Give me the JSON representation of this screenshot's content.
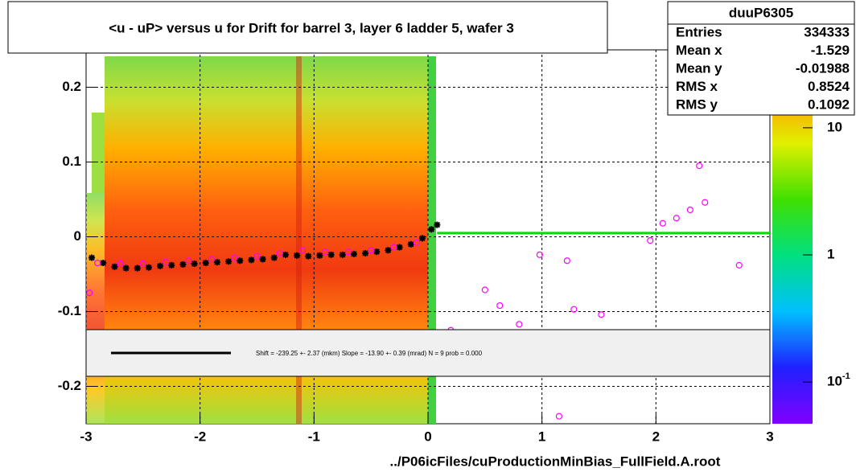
{
  "chart_data": {
    "type": "scatter",
    "title": "<u - uP>       versus   u for Drift for barrel 3, layer 6 ladder 5, wafer 3",
    "x_label": "../P06icFiles/cuProductionMinBias_FullField.A.root",
    "xlim": [
      -3,
      3
    ],
    "xticks": [
      -3,
      -2,
      -1,
      0,
      1,
      2,
      3
    ],
    "ylim": [
      -0.25,
      0.25
    ],
    "yticks": [
      -0.2,
      -0.1,
      0,
      0.1,
      0.2
    ],
    "grid": true,
    "series": [
      {
        "color": "#000000",
        "marker": "star",
        "x": [
          -2.95,
          -2.85,
          -2.75,
          -2.65,
          -2.55,
          -2.45,
          -2.35,
          -2.25,
          -2.15,
          -2.05,
          -1.95,
          -1.85,
          -1.75,
          -1.65,
          -1.55,
          -1.45,
          -1.35,
          -1.25,
          -1.15,
          -1.05,
          -0.95,
          -0.85,
          -0.75,
          -0.65,
          -0.55,
          -0.45,
          -0.35,
          -0.25,
          -0.15,
          -0.05,
          0.03,
          0.08
        ],
        "values": [
          -0.028,
          -0.035,
          -0.04,
          -0.042,
          -0.042,
          -0.041,
          -0.039,
          -0.038,
          -0.037,
          -0.036,
          -0.035,
          -0.034,
          -0.033,
          -0.032,
          -0.031,
          -0.03,
          -0.028,
          -0.024,
          -0.025,
          -0.026,
          -0.025,
          -0.024,
          -0.024,
          -0.023,
          -0.022,
          -0.02,
          -0.018,
          -0.014,
          -0.01,
          -0.002,
          0.01,
          0.016
        ]
      },
      {
        "color": "#ff00ff",
        "marker": "circle",
        "x": [
          -2.97,
          -2.9,
          -2.7,
          -2.5,
          -2.3,
          -2.1,
          -1.9,
          -1.7,
          -1.5,
          -1.3,
          -1.1,
          -0.9,
          -0.7,
          -0.5,
          -0.3,
          -0.1,
          0.2,
          0.5,
          0.63,
          0.8,
          0.98,
          1.15,
          1.22,
          1.28,
          1.52,
          1.95,
          2.06,
          2.18,
          2.3,
          2.38,
          2.43,
          2.73
        ],
        "values": [
          -0.075,
          -0.035,
          -0.036,
          -0.036,
          -0.034,
          -0.032,
          -0.03,
          -0.028,
          -0.026,
          -0.022,
          -0.018,
          -0.02,
          -0.02,
          -0.018,
          -0.014,
          -0.008,
          -0.125,
          -0.071,
          -0.092,
          -0.117,
          -0.024,
          -0.24,
          -0.032,
          -0.097,
          -0.104,
          -0.005,
          0.018,
          0.025,
          0.036,
          0.095,
          0.046,
          -0.038
        ]
      },
      {
        "color": "#00dd00",
        "marker": "line",
        "x": [
          0.08,
          3
        ],
        "values": [
          0.005,
          0.005
        ]
      }
    ],
    "fit_text": "Shift =  -239.25 +- 2.37 (mkm) Slope =   -13.90 +- 0.39 (mrad)  N = 9 prob = 0.000",
    "stats": {
      "title": "duuP6305",
      "rows": [
        [
          "Entries",
          334333
        ],
        [
          "Mean x",
          -1.529
        ],
        [
          "Mean y",
          -0.01988
        ],
        [
          "RMS x",
          0.8524
        ],
        [
          "RMS y",
          0.1092
        ]
      ]
    },
    "colorbar": {
      "log": true,
      "zlim": [
        0.047,
        41
      ],
      "ticks": [
        10,
        1,
        {
          "value": 0.1,
          "label": "10",
          "superscript": "-1"
        }
      ]
    }
  }
}
